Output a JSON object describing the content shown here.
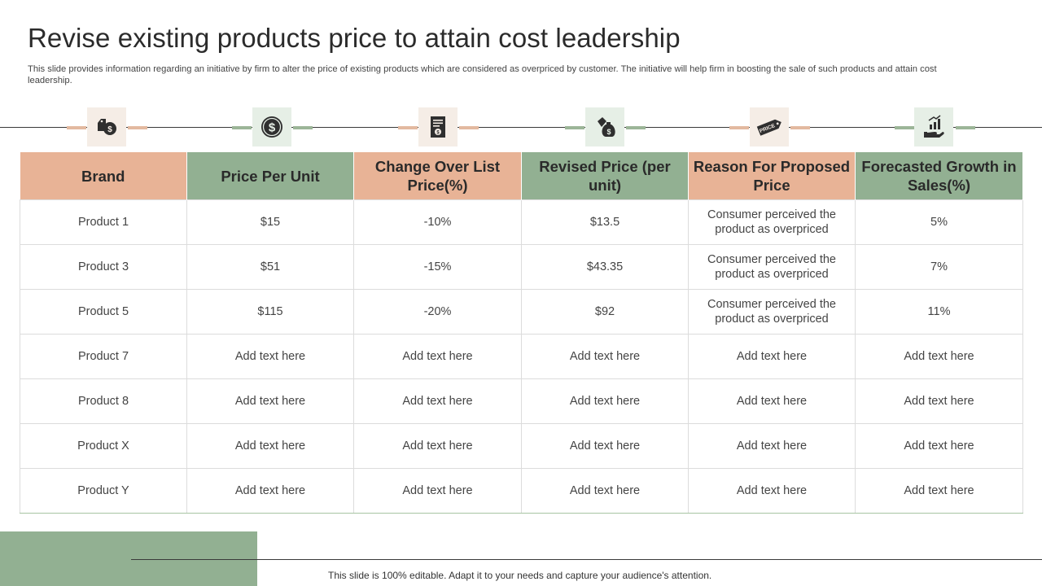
{
  "slide": {
    "title": "Revise existing products price to attain cost leadership",
    "description": "This slide provides information regarding an initiative by firm to alter the price of existing products which are considered as overpriced by customer. The initiative will help firm in boosting the sale of such products and attain cost leadership."
  },
  "icons": [
    {
      "name": "price-tag-coin-icon",
      "color": "orange"
    },
    {
      "name": "dollar-coin-icon",
      "color": "green"
    },
    {
      "name": "price-document-icon",
      "color": "orange"
    },
    {
      "name": "money-bag-tag-icon",
      "color": "green"
    },
    {
      "name": "price-label-icon",
      "color": "orange"
    },
    {
      "name": "growth-chart-hand-icon",
      "color": "green"
    }
  ],
  "icon_texts": {
    "price_label": "PRICE"
  },
  "table": {
    "headers": [
      "Brand",
      "Price Per Unit",
      "Change Over List Price(%)",
      "Revised Price (per unit)",
      "Reason For Proposed Price",
      "Forecasted Growth in Sales(%)"
    ],
    "rows": [
      [
        "Product 1",
        "$15",
        "-10%",
        "$13.5",
        "Consumer perceived the product as overpriced",
        "5%"
      ],
      [
        "Product 3",
        "$51",
        "-15%",
        "$43.35",
        "Consumer perceived the product as overpriced",
        "7%"
      ],
      [
        "Product 5",
        "$115",
        "-20%",
        "$92",
        "Consumer perceived the product as overpriced",
        "11%"
      ],
      [
        "Product 7",
        "Add text here",
        "Add text here",
        "Add text here",
        "Add text here",
        "Add text here"
      ],
      [
        "Product 8",
        "Add text here",
        "Add text here",
        "Add text here",
        "Add text here",
        "Add text here"
      ],
      [
        "Product X",
        "Add text here",
        "Add text here",
        "Add text here",
        "Add text here",
        "Add text here"
      ],
      [
        "Product Y",
        "Add text here",
        "Add text here",
        "Add text here",
        "Add text here",
        "Add text here"
      ]
    ]
  },
  "footer": {
    "text": "This slide is 100% editable. Adapt it to your needs and capture your audience's attention."
  },
  "colors": {
    "orange": "#e8b396",
    "green": "#92b092",
    "icon_dark": "#2f2f2f"
  }
}
